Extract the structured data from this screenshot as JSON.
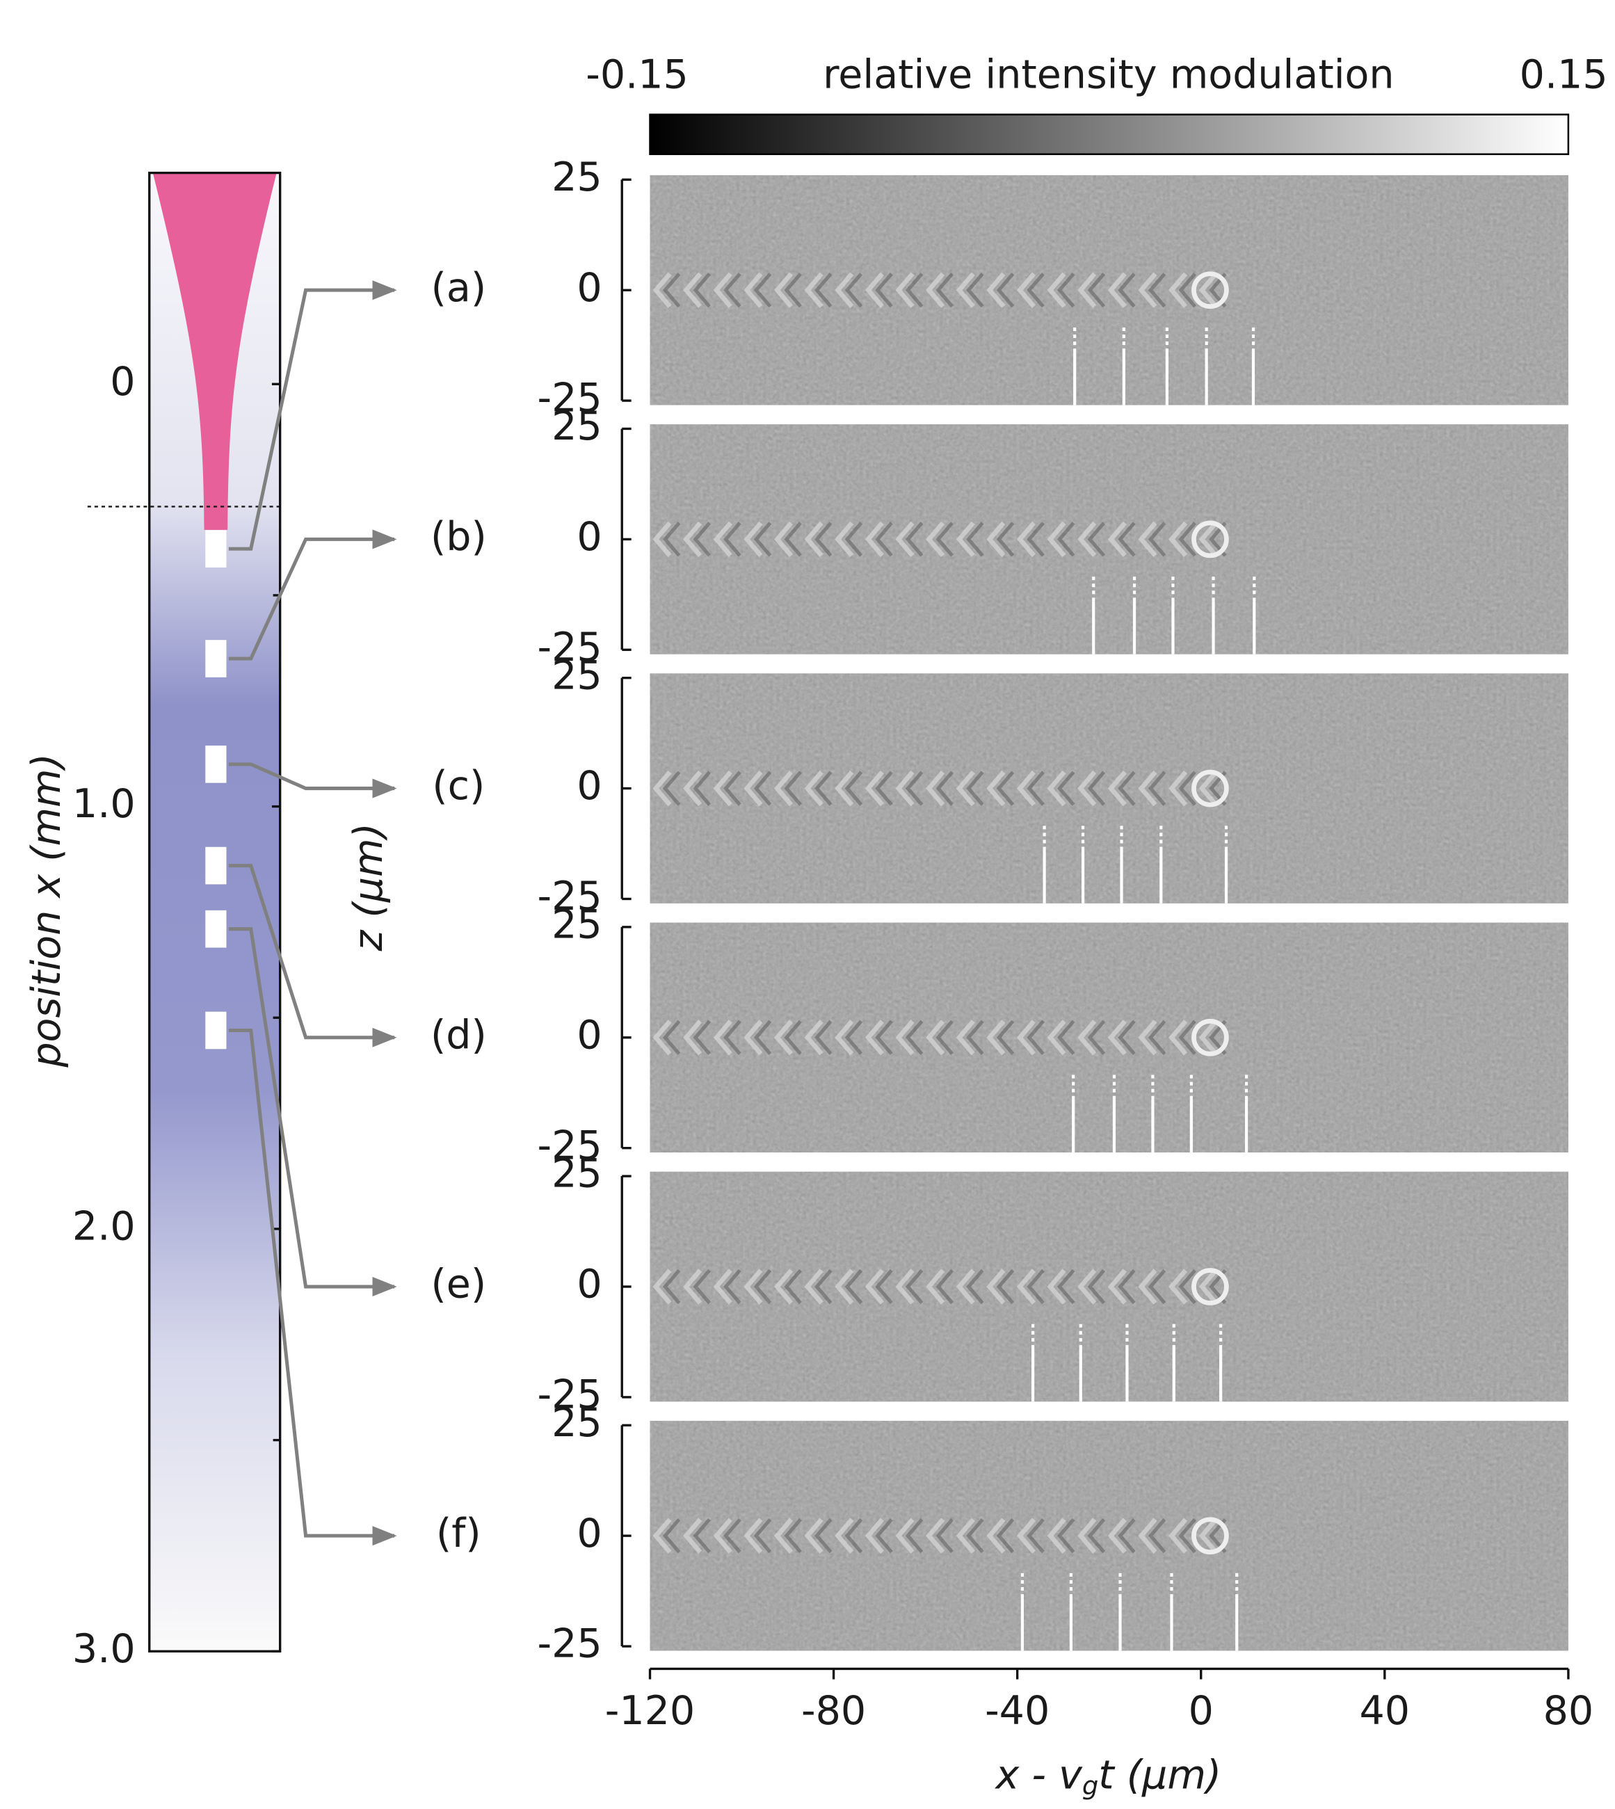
{
  "colorbar": {
    "label": "relative intensity modulation",
    "min": {
      "value": -0.15,
      "label": "-0.15"
    },
    "max": 0.15
  },
  "sample": {
    "axis_label": "position x (mm)",
    "ylim": [
      -0.5,
      3.0
    ],
    "ticks": [
      0,
      {
        "value": 1,
        "label": "1.0"
      },
      {
        "value": 2,
        "label": "2.0"
      },
      {
        "value": 3,
        "label": "3.0"
      }
    ],
    "minor_ticks": [
      0.5,
      1.5,
      2.5
    ],
    "interface": 0.29,
    "positions": [
      0.39,
      0.65,
      0.9,
      1.14,
      1.29,
      1.53
    ]
  },
  "panels": {
    "z_label": "z (μm)",
    "zlim": [
      -26,
      26
    ],
    "zticks": [
      25,
      0,
      -25
    ],
    "xlim": [
      -120,
      80
    ],
    "xticks": [
      -120,
      -80,
      -40,
      0,
      40,
      80
    ],
    "x_label": {
      "pre": "x - v",
      "sub": "g",
      "post": "t (μm)"
    },
    "items": [
      {
        "label": "(a)",
        "markers": [
          -27.5,
          -16.8,
          -7.4,
          1.2,
          11.4
        ]
      },
      {
        "label": "(b)",
        "markers": [
          -23.4,
          -14.5,
          -6.1,
          2.7,
          11.6
        ]
      },
      {
        "label": "(c)",
        "markers": [
          -34.1,
          -25.7,
          -17.3,
          -8.7,
          5.5
        ]
      },
      {
        "label": "(d)",
        "markers": [
          -27.8,
          -18.9,
          -10.5,
          -2.1,
          9.9
        ]
      },
      {
        "label": "(e)",
        "markers": [
          -36.6,
          -26.2,
          -16.1,
          -5.9,
          4.3
        ]
      },
      {
        "label": "(f)",
        "markers": [
          -38.9,
          -28.3,
          -17.6,
          -6.4,
          7.8
        ]
      }
    ]
  }
}
